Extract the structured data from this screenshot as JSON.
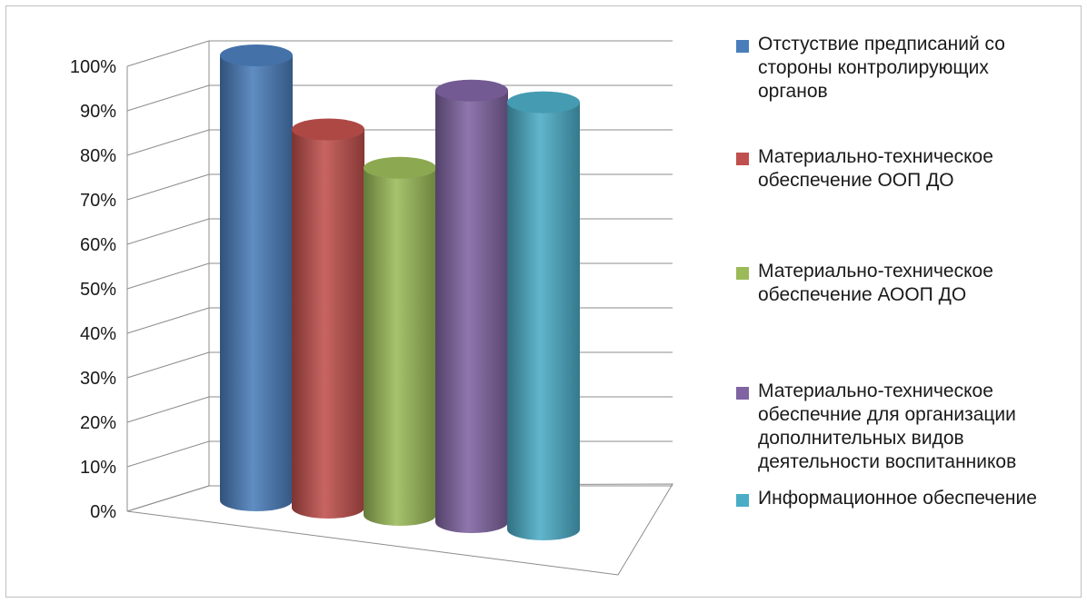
{
  "chart_data": {
    "type": "bar",
    "style": "3d-cylinder",
    "title": "",
    "xlabel": "",
    "ylabel": "",
    "ylim": [
      0,
      100
    ],
    "y_ticks": [
      "0%",
      "10%",
      "20%",
      "30%",
      "40%",
      "50%",
      "60%",
      "70%",
      "80%",
      "90%",
      "100%"
    ],
    "grid": true,
    "legend_position": "right",
    "series": [
      {
        "name": "Отстуствие предписаний со стороны контролирующих органов",
        "value": 100,
        "color": "#4a7ebb"
      },
      {
        "name": "Материально-техническое обеспечение ООП ДО",
        "value": 85,
        "color": "#c0504d"
      },
      {
        "name": "Материально-техническое обеспечение АООП ДО",
        "value": 78,
        "color": "#9bbb59"
      },
      {
        "name": "Материально-техническое обеспечние для организации дополнительных видов деятельности воспитанников",
        "value": 97,
        "color": "#8064a2"
      },
      {
        "name": "Информационное обеспечение",
        "value": 96,
        "color": "#4bacc6"
      }
    ]
  }
}
